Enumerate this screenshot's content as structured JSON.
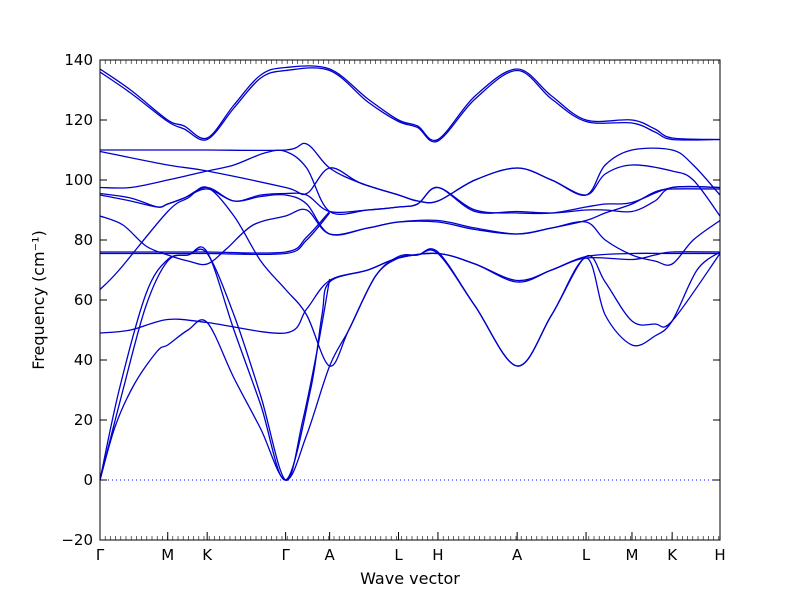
{
  "chart_data": {
    "type": "line",
    "title": "",
    "xlabel": "Wave vector",
    "ylabel": "Frequency (cm⁻¹)",
    "ylim": [
      -20,
      140
    ],
    "yticks": [
      -20,
      0,
      20,
      40,
      60,
      80,
      100,
      120,
      140
    ],
    "ytick_labels": [
      "−20",
      "0",
      "20",
      "40",
      "60",
      "80",
      "100",
      "120",
      "140"
    ],
    "xlim": [
      0,
      16.2
    ],
    "x_ticks": [
      {
        "label": "Γ",
        "x": 0
      },
      {
        "label": "M",
        "x": 1.77
      },
      {
        "label": "K",
        "x": 2.8
      },
      {
        "label": "Γ",
        "x": 4.85
      },
      {
        "label": "A",
        "x": 6.0
      },
      {
        "label": "L",
        "x": 7.8
      },
      {
        "label": "H",
        "x": 8.83
      },
      {
        "label": "A",
        "x": 10.9
      },
      {
        "label": "L",
        "x": 12.7
      },
      {
        "label": "M",
        "x": 13.9
      },
      {
        "label": "K",
        "x": 14.95
      },
      {
        "label": "H",
        "x": 16.2
      }
    ],
    "line_color": "#0000cc",
    "zero_line_color": "#0000ff",
    "zero_line_style": "dotted",
    "series": [
      {
        "values": [
          [
            0,
            137
          ],
          [
            0.8,
            130
          ],
          [
            1.77,
            120
          ],
          [
            2.2,
            118
          ],
          [
            2.8,
            114
          ],
          [
            3.5,
            125
          ],
          [
            4.2,
            135
          ],
          [
            4.85,
            137.5
          ],
          [
            6.0,
            137
          ],
          [
            7.0,
            127
          ],
          [
            7.8,
            120
          ],
          [
            8.3,
            118
          ],
          [
            8.83,
            113.5
          ],
          [
            9.8,
            128
          ],
          [
            10.9,
            137
          ],
          [
            11.8,
            128
          ],
          [
            12.7,
            120
          ],
          [
            13.9,
            120
          ],
          [
            14.5,
            117
          ],
          [
            14.95,
            114
          ],
          [
            16.2,
            113.5
          ]
        ]
      },
      {
        "values": [
          [
            0,
            136
          ],
          [
            0.8,
            129
          ],
          [
            1.77,
            119.5
          ],
          [
            2.2,
            117
          ],
          [
            2.8,
            113.5
          ],
          [
            3.5,
            124
          ],
          [
            4.2,
            134
          ],
          [
            4.85,
            136.5
          ],
          [
            6.0,
            136.5
          ],
          [
            7.0,
            126
          ],
          [
            7.8,
            119.5
          ],
          [
            8.3,
            117.5
          ],
          [
            8.83,
            113
          ],
          [
            9.8,
            127
          ],
          [
            10.9,
            136.5
          ],
          [
            11.8,
            127
          ],
          [
            12.7,
            119.5
          ],
          [
            13.9,
            119
          ],
          [
            14.5,
            116
          ],
          [
            14.95,
            113.5
          ],
          [
            16.2,
            113.5
          ]
        ]
      },
      {
        "values": [
          [
            0,
            110
          ],
          [
            1.77,
            110
          ],
          [
            2.8,
            110
          ],
          [
            4.85,
            110
          ],
          [
            5.4,
            112
          ],
          [
            6.0,
            104
          ],
          [
            6.8,
            99
          ],
          [
            7.8,
            95
          ],
          [
            8.3,
            93
          ],
          [
            8.83,
            93
          ],
          [
            9.8,
            100
          ],
          [
            10.9,
            104
          ],
          [
            11.8,
            100
          ],
          [
            12.7,
            95
          ],
          [
            13.2,
            105
          ],
          [
            13.9,
            110
          ],
          [
            14.95,
            110
          ],
          [
            15.5,
            105
          ],
          [
            16.2,
            95
          ]
        ]
      },
      {
        "values": [
          [
            0,
            109.5
          ],
          [
            1.77,
            105
          ],
          [
            2.8,
            103
          ],
          [
            4.85,
            97.5
          ],
          [
            5.4,
            95.5
          ],
          [
            6.0,
            104
          ],
          [
            6.8,
            99
          ],
          [
            7.8,
            95
          ],
          [
            8.3,
            93
          ],
          [
            8.83,
            93
          ],
          [
            9.8,
            100
          ],
          [
            10.9,
            104
          ],
          [
            11.8,
            100
          ],
          [
            12.7,
            95
          ],
          [
            13.2,
            102
          ],
          [
            13.9,
            105
          ],
          [
            14.95,
            103
          ],
          [
            15.5,
            100
          ],
          [
            16.2,
            88
          ]
        ]
      },
      {
        "values": [
          [
            0,
            97.5
          ],
          [
            0.8,
            97.5
          ],
          [
            1.77,
            100
          ],
          [
            2.8,
            103
          ],
          [
            3.5,
            105
          ],
          [
            4.3,
            109
          ],
          [
            4.85,
            109.5
          ],
          [
            5.4,
            104
          ],
          [
            6.0,
            89.5
          ],
          [
            7.0,
            90
          ],
          [
            7.8,
            91
          ],
          [
            8.3,
            92
          ],
          [
            8.83,
            97.5
          ],
          [
            9.8,
            90
          ],
          [
            10.9,
            89
          ],
          [
            11.8,
            89
          ],
          [
            12.7,
            91
          ],
          [
            13.2,
            92
          ],
          [
            13.9,
            92.5
          ],
          [
            14.95,
            97.5
          ],
          [
            16.2,
            97.5
          ]
        ]
      },
      {
        "values": [
          [
            0,
            95.5
          ],
          [
            0.8,
            94
          ],
          [
            1.5,
            91
          ],
          [
            1.77,
            92
          ],
          [
            2.2,
            94
          ],
          [
            2.8,
            97.5
          ],
          [
            3.5,
            93
          ],
          [
            4.2,
            95
          ],
          [
            4.85,
            95.5
          ],
          [
            5.4,
            95
          ],
          [
            6.0,
            89.5
          ],
          [
            7.0,
            90
          ],
          [
            7.8,
            91
          ],
          [
            8.3,
            92
          ],
          [
            8.83,
            97.5
          ],
          [
            9.8,
            89.5
          ],
          [
            10.9,
            89.5
          ],
          [
            11.8,
            89
          ],
          [
            12.7,
            90
          ],
          [
            13.2,
            90
          ],
          [
            13.9,
            89.5
          ],
          [
            14.5,
            93
          ],
          [
            14.95,
            97.5
          ],
          [
            16.2,
            97.5
          ]
        ]
      },
      {
        "values": [
          [
            0,
            95
          ],
          [
            0.8,
            93
          ],
          [
            1.5,
            91
          ],
          [
            1.77,
            92
          ],
          [
            2.2,
            94
          ],
          [
            2.8,
            97
          ],
          [
            3.5,
            93
          ],
          [
            4.2,
            94.5
          ],
          [
            4.85,
            95
          ],
          [
            5.4,
            92
          ],
          [
            6.0,
            82
          ],
          [
            7.0,
            84
          ],
          [
            7.8,
            86
          ],
          [
            8.83,
            86.5
          ],
          [
            9.8,
            84
          ],
          [
            10.9,
            82
          ],
          [
            11.8,
            84
          ],
          [
            12.7,
            86.5
          ],
          [
            13.2,
            89
          ],
          [
            13.9,
            92
          ],
          [
            14.5,
            96
          ],
          [
            14.95,
            97
          ],
          [
            16.2,
            97
          ]
        ]
      },
      {
        "values": [
          [
            0,
            88
          ],
          [
            0.6,
            85
          ],
          [
            1.2,
            78
          ],
          [
            1.77,
            75
          ],
          [
            2.3,
            73
          ],
          [
            2.8,
            72
          ],
          [
            3.3,
            77
          ],
          [
            4.0,
            85
          ],
          [
            4.85,
            88
          ],
          [
            5.4,
            90
          ],
          [
            6.0,
            82
          ],
          [
            7.0,
            84
          ],
          [
            7.8,
            86
          ],
          [
            8.83,
            86
          ],
          [
            9.8,
            83.5
          ],
          [
            10.9,
            82
          ],
          [
            11.8,
            84
          ],
          [
            12.7,
            86
          ],
          [
            13.2,
            80
          ],
          [
            13.9,
            75
          ],
          [
            14.5,
            73
          ],
          [
            14.95,
            72
          ],
          [
            15.5,
            80
          ],
          [
            16.2,
            86.5
          ]
        ]
      },
      {
        "values": [
          [
            0,
            76
          ],
          [
            1.77,
            76
          ],
          [
            2.8,
            76
          ],
          [
            4.85,
            76
          ],
          [
            5.4,
            81
          ],
          [
            6.0,
            89.5
          ]
        ]
      },
      {
        "values": [
          [
            0,
            75.5
          ],
          [
            1.77,
            75.5
          ],
          [
            2.8,
            75.5
          ],
          [
            4.85,
            75.5
          ],
          [
            5.4,
            80
          ],
          [
            6.0,
            89
          ]
        ]
      },
      {
        "values": [
          [
            0,
            63.5
          ],
          [
            0.5,
            70
          ],
          [
            1.77,
            89.5
          ],
          [
            2.3,
            94
          ],
          [
            2.8,
            97.5
          ],
          [
            3.5,
            88
          ],
          [
            4.2,
            73
          ],
          [
            4.85,
            63.5
          ],
          [
            5.4,
            55
          ],
          [
            6.0,
            38
          ],
          [
            6.5,
            50
          ],
          [
            7.2,
            68
          ],
          [
            7.8,
            74.5
          ],
          [
            8.3,
            75
          ],
          [
            8.83,
            76
          ],
          [
            9.8,
            58
          ],
          [
            10.9,
            38
          ],
          [
            11.8,
            55
          ],
          [
            12.7,
            74.5
          ],
          [
            13.2,
            66
          ],
          [
            13.9,
            53
          ],
          [
            14.5,
            52
          ],
          [
            14.95,
            53
          ],
          [
            16.2,
            75.5
          ]
        ]
      },
      {
        "values": [
          [
            0,
            49
          ],
          [
            0.8,
            50
          ],
          [
            1.77,
            53.5
          ],
          [
            2.8,
            52.5
          ],
          [
            4.85,
            49
          ],
          [
            5.4,
            57
          ],
          [
            6.0,
            66.5
          ],
          [
            7.0,
            70
          ],
          [
            7.8,
            74
          ],
          [
            8.83,
            75.5
          ],
          [
            9.8,
            72
          ],
          [
            10.9,
            66.5
          ],
          [
            11.8,
            70
          ],
          [
            12.7,
            74.5
          ],
          [
            13.9,
            75.5
          ],
          [
            14.95,
            75.5
          ],
          [
            16.2,
            75.5
          ]
        ]
      },
      {
        "values": [
          [
            0,
            0
          ],
          [
            0.5,
            30
          ],
          [
            1.2,
            62
          ],
          [
            1.77,
            73.5
          ],
          [
            2.3,
            75
          ],
          [
            2.8,
            76
          ],
          [
            3.5,
            50
          ],
          [
            4.2,
            25
          ],
          [
            4.85,
            0
          ],
          [
            5.5,
            30
          ],
          [
            5.8,
            55
          ],
          [
            6.0,
            66
          ],
          [
            7.0,
            70
          ],
          [
            7.8,
            74
          ],
          [
            8.83,
            75.5
          ],
          [
            9.8,
            72
          ],
          [
            10.9,
            66
          ],
          [
            11.8,
            70
          ],
          [
            12.7,
            74
          ],
          [
            13.9,
            73.5
          ],
          [
            14.5,
            75
          ],
          [
            14.95,
            76
          ],
          [
            16.2,
            76
          ]
        ]
      },
      {
        "values": [
          [
            0,
            0
          ],
          [
            0.4,
            18
          ],
          [
            0.9,
            32
          ],
          [
            1.5,
            43
          ],
          [
            1.77,
            45
          ],
          [
            2.3,
            50
          ],
          [
            2.8,
            52.5
          ],
          [
            3.5,
            34
          ],
          [
            4.2,
            17
          ],
          [
            4.85,
            0
          ],
          [
            5.4,
            15
          ],
          [
            6.0,
            38
          ],
          [
            6.5,
            50
          ],
          [
            7.2,
            68
          ],
          [
            7.8,
            74
          ],
          [
            8.3,
            75
          ],
          [
            8.83,
            75.5
          ],
          [
            9.8,
            58
          ],
          [
            10.9,
            38
          ],
          [
            11.8,
            55
          ],
          [
            12.7,
            74
          ],
          [
            13.2,
            55
          ],
          [
            13.9,
            45
          ],
          [
            14.5,
            48
          ],
          [
            14.95,
            53
          ],
          [
            15.6,
            70
          ],
          [
            16.2,
            76
          ]
        ]
      },
      {
        "values": [
          [
            0,
            0
          ],
          [
            0.6,
            30
          ],
          [
            1.2,
            58
          ],
          [
            1.77,
            73
          ],
          [
            2.3,
            75
          ],
          [
            2.8,
            75.5
          ],
          [
            3.5,
            55
          ],
          [
            4.2,
            28
          ],
          [
            4.85,
            0
          ],
          [
            5.3,
            20
          ],
          [
            5.7,
            45
          ],
          [
            6.0,
            67
          ]
        ]
      }
    ]
  }
}
